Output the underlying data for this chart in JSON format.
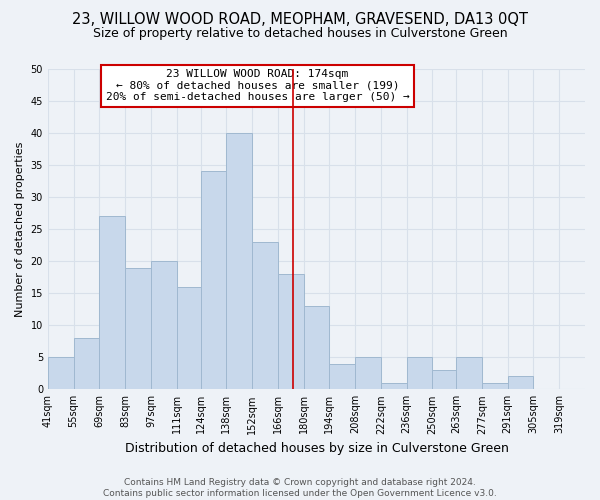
{
  "title": "23, WILLOW WOOD ROAD, MEOPHAM, GRAVESEND, DA13 0QT",
  "subtitle": "Size of property relative to detached houses in Culverstone Green",
  "xlabel": "Distribution of detached houses by size in Culverstone Green",
  "ylabel": "Number of detached properties",
  "bin_labels": [
    "41sqm",
    "55sqm",
    "69sqm",
    "83sqm",
    "97sqm",
    "111sqm",
    "124sqm",
    "138sqm",
    "152sqm",
    "166sqm",
    "180sqm",
    "194sqm",
    "208sqm",
    "222sqm",
    "236sqm",
    "250sqm",
    "263sqm",
    "277sqm",
    "291sqm",
    "305sqm",
    "319sqm"
  ],
  "bar_heights": [
    5,
    8,
    27,
    19,
    20,
    16,
    34,
    40,
    23,
    18,
    13,
    4,
    5,
    1,
    5,
    3,
    5,
    1,
    2,
    0,
    0
  ],
  "bar_color": "#c8d8eb",
  "bar_edge_color": "#a0b8d0",
  "annotation_title": "23 WILLOW WOOD ROAD: 174sqm",
  "annotation_line1": "← 80% of detached houses are smaller (199)",
  "annotation_line2": "20% of semi-detached houses are larger (50) →",
  "annotation_box_color": "#ffffff",
  "annotation_border_color": "#cc0000",
  "vline_color": "#cc0000",
  "vline_x": 174,
  "ylim": [
    0,
    50
  ],
  "yticks": [
    0,
    5,
    10,
    15,
    20,
    25,
    30,
    35,
    40,
    45,
    50
  ],
  "footer_line1": "Contains HM Land Registry data © Crown copyright and database right 2024.",
  "footer_line2": "Contains public sector information licensed under the Open Government Licence v3.0.",
  "background_color": "#eef2f7",
  "grid_color": "#d8e0ea",
  "title_fontsize": 10.5,
  "subtitle_fontsize": 9,
  "xlabel_fontsize": 9,
  "ylabel_fontsize": 8,
  "tick_fontsize": 7,
  "annotation_fontsize": 8,
  "footer_fontsize": 6.5
}
